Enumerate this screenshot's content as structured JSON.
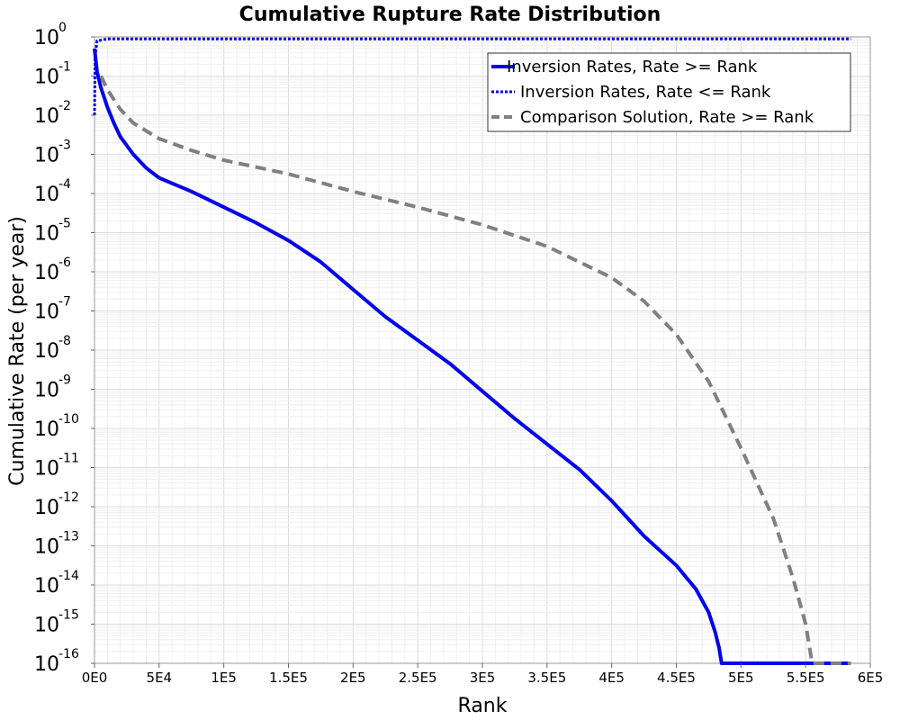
{
  "chart_data": {
    "type": "line",
    "title": "Cumulative Rupture Rate Distribution",
    "xlabel": "Rank",
    "ylabel": "Cumulative Rate (per year)",
    "xlim": [
      0,
      600000
    ],
    "ylim_log10": [
      -16,
      0
    ],
    "y_scale": "log",
    "grid": true,
    "legend_position": "top-right",
    "x_ticks": [
      {
        "value": 0,
        "label": "0E0"
      },
      {
        "value": 50000,
        "label": "5E4"
      },
      {
        "value": 100000,
        "label": "1E5"
      },
      {
        "value": 150000,
        "label": "1.5E5"
      },
      {
        "value": 200000,
        "label": "2E5"
      },
      {
        "value": 250000,
        "label": "2.5E5"
      },
      {
        "value": 300000,
        "label": "3E5"
      },
      {
        "value": 350000,
        "label": "3.5E5"
      },
      {
        "value": 400000,
        "label": "4E5"
      },
      {
        "value": 450000,
        "label": "4.5E5"
      },
      {
        "value": 500000,
        "label": "5E5"
      },
      {
        "value": 550000,
        "label": "5.5E5"
      },
      {
        "value": 600000,
        "label": "6E5"
      }
    ],
    "y_ticks": [
      {
        "exp": 0,
        "base": "10",
        "sup": "0"
      },
      {
        "exp": -1,
        "base": "10",
        "sup": "-1"
      },
      {
        "exp": -2,
        "base": "10",
        "sup": "-2"
      },
      {
        "exp": -3,
        "base": "10",
        "sup": "-3"
      },
      {
        "exp": -4,
        "base": "10",
        "sup": "-4"
      },
      {
        "exp": -5,
        "base": "10",
        "sup": "-5"
      },
      {
        "exp": -6,
        "base": "10",
        "sup": "-6"
      },
      {
        "exp": -7,
        "base": "10",
        "sup": "-7"
      },
      {
        "exp": -8,
        "base": "10",
        "sup": "-8"
      },
      {
        "exp": -9,
        "base": "10",
        "sup": "-9"
      },
      {
        "exp": -10,
        "base": "10",
        "sup": "-10"
      },
      {
        "exp": -11,
        "base": "10",
        "sup": "-11"
      },
      {
        "exp": -12,
        "base": "10",
        "sup": "-12"
      },
      {
        "exp": -13,
        "base": "10",
        "sup": "-13"
      },
      {
        "exp": -14,
        "base": "10",
        "sup": "-14"
      },
      {
        "exp": -15,
        "base": "10",
        "sup": "-15"
      },
      {
        "exp": -16,
        "base": "10",
        "sup": "-16"
      }
    ],
    "series": [
      {
        "name": "Inversion Rates, Rate >= Rank",
        "color": "#0000ee",
        "style": "solid",
        "points": [
          [
            0,
            -0.3
          ],
          [
            2000,
            -0.9
          ],
          [
            5000,
            -1.3
          ],
          [
            10000,
            -1.8
          ],
          [
            15000,
            -2.2
          ],
          [
            20000,
            -2.55
          ],
          [
            30000,
            -3.0
          ],
          [
            40000,
            -3.35
          ],
          [
            50000,
            -3.6
          ],
          [
            75000,
            -3.95
          ],
          [
            100000,
            -4.35
          ],
          [
            125000,
            -4.75
          ],
          [
            150000,
            -5.2
          ],
          [
            175000,
            -5.75
          ],
          [
            200000,
            -6.45
          ],
          [
            225000,
            -7.15
          ],
          [
            250000,
            -7.75
          ],
          [
            275000,
            -8.35
          ],
          [
            300000,
            -9.05
          ],
          [
            325000,
            -9.75
          ],
          [
            350000,
            -10.4
          ],
          [
            375000,
            -11.05
          ],
          [
            400000,
            -11.85
          ],
          [
            425000,
            -12.75
          ],
          [
            450000,
            -13.5
          ],
          [
            465000,
            -14.1
          ],
          [
            475000,
            -14.7
          ],
          [
            480000,
            -15.2
          ],
          [
            483000,
            -15.6
          ],
          [
            485000,
            -16.0
          ],
          [
            585000,
            -16.0
          ]
        ]
      },
      {
        "name": "Inversion Rates, Rate <= Rank",
        "color": "#0000ee",
        "style": "dotted",
        "points": [
          [
            0,
            -2.0
          ],
          [
            500,
            -0.5
          ],
          [
            2000,
            -0.1
          ],
          [
            10000,
            -0.05
          ],
          [
            100000,
            -0.05
          ],
          [
            585000,
            -0.05
          ]
        ]
      },
      {
        "name": "Comparison Solution, Rate >= Rank",
        "color": "#808080",
        "style": "dashed",
        "points": [
          [
            5000,
            -1.0
          ],
          [
            10000,
            -1.35
          ],
          [
            20000,
            -1.85
          ],
          [
            30000,
            -2.2
          ],
          [
            50000,
            -2.6
          ],
          [
            75000,
            -2.9
          ],
          [
            100000,
            -3.15
          ],
          [
            150000,
            -3.5
          ],
          [
            200000,
            -3.95
          ],
          [
            250000,
            -4.35
          ],
          [
            300000,
            -4.8
          ],
          [
            350000,
            -5.35
          ],
          [
            400000,
            -6.15
          ],
          [
            425000,
            -6.75
          ],
          [
            450000,
            -7.6
          ],
          [
            475000,
            -8.8
          ],
          [
            500000,
            -10.5
          ],
          [
            525000,
            -12.3
          ],
          [
            540000,
            -13.8
          ],
          [
            550000,
            -15.0
          ],
          [
            555000,
            -16.0
          ],
          [
            585000,
            -16.0
          ]
        ]
      }
    ]
  }
}
